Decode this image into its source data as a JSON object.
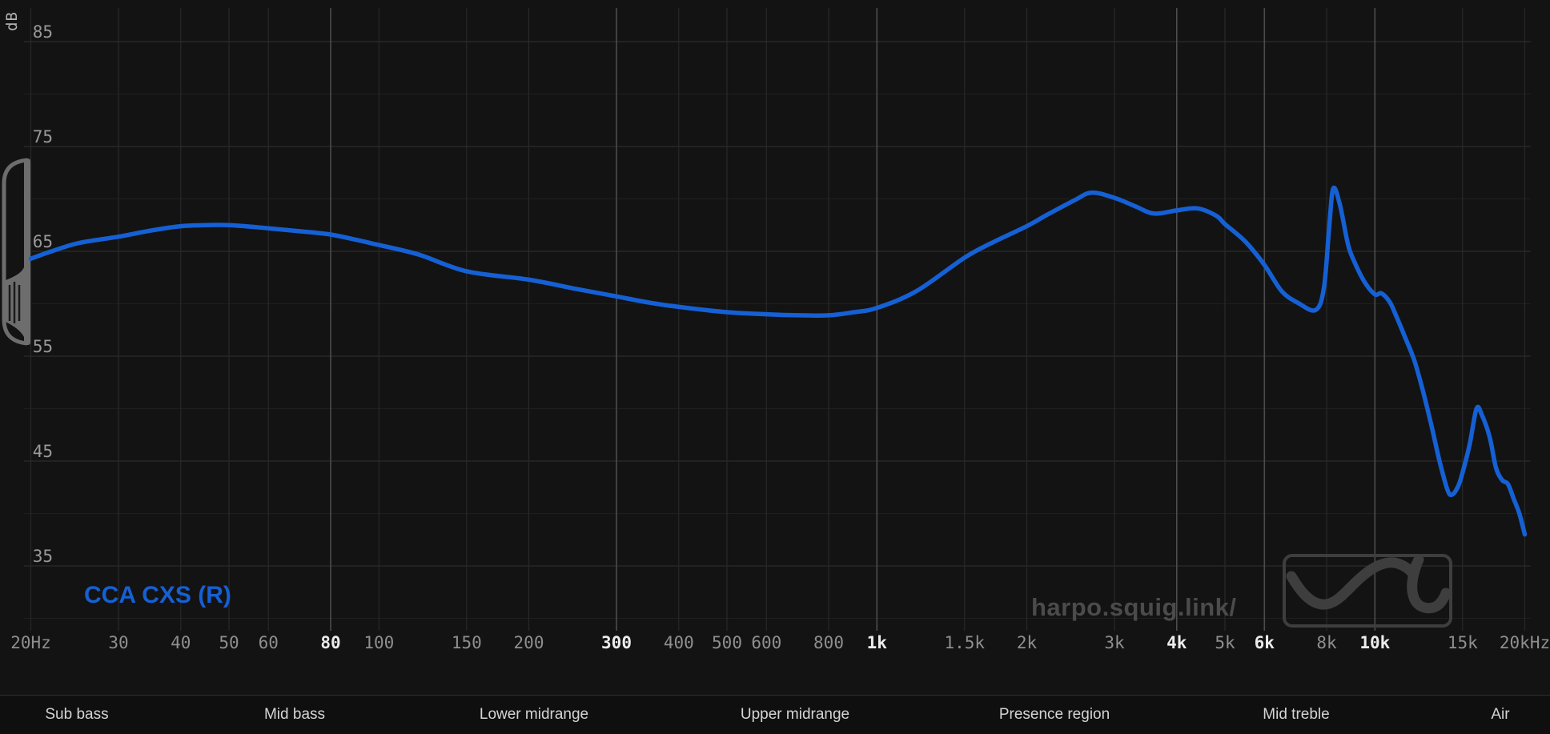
{
  "axes": {
    "y_unit": "dB"
  },
  "legend": {
    "label": "CCA CXS (R)",
    "color": "#1560d4"
  },
  "watermark": {
    "text": "harpo.squig.link/"
  },
  "regions": {
    "items": [
      {
        "label": "Sub bass"
      },
      {
        "label": "Mid bass"
      },
      {
        "label": "Lower midrange"
      },
      {
        "label": "Upper midrange"
      },
      {
        "label": "Presence region"
      },
      {
        "label": "Mid treble"
      },
      {
        "label": "Air"
      }
    ]
  },
  "chart_data": {
    "type": "line",
    "title": "",
    "x_axis": {
      "scale": "log",
      "unit": "Hz",
      "min": 20,
      "max": 20000,
      "ticks": [
        {
          "f": 20,
          "label": "20Hz",
          "major": false
        },
        {
          "f": 30,
          "label": "30",
          "major": false
        },
        {
          "f": 40,
          "label": "40",
          "major": false
        },
        {
          "f": 50,
          "label": "50",
          "major": false
        },
        {
          "f": 60,
          "label": "60",
          "major": false
        },
        {
          "f": 80,
          "label": "80",
          "major": true
        },
        {
          "f": 100,
          "label": "100",
          "major": false
        },
        {
          "f": 150,
          "label": "150",
          "major": false
        },
        {
          "f": 200,
          "label": "200",
          "major": false
        },
        {
          "f": 300,
          "label": "300",
          "major": true
        },
        {
          "f": 400,
          "label": "400",
          "major": false
        },
        {
          "f": 500,
          "label": "500",
          "major": false
        },
        {
          "f": 600,
          "label": "600",
          "major": false
        },
        {
          "f": 800,
          "label": "800",
          "major": false
        },
        {
          "f": 1000,
          "label": "1k",
          "major": true
        },
        {
          "f": 1500,
          "label": "1.5k",
          "major": false
        },
        {
          "f": 2000,
          "label": "2k",
          "major": false
        },
        {
          "f": 3000,
          "label": "3k",
          "major": false
        },
        {
          "f": 4000,
          "label": "4k",
          "major": true
        },
        {
          "f": 5000,
          "label": "5k",
          "major": false
        },
        {
          "f": 6000,
          "label": "6k",
          "major": true
        },
        {
          "f": 8000,
          "label": "8k",
          "major": false
        },
        {
          "f": 10000,
          "label": "10k",
          "major": true
        },
        {
          "f": 15000,
          "label": "15k",
          "major": false
        },
        {
          "f": 20000,
          "label": "20kHz",
          "major": false
        }
      ]
    },
    "y_axis": {
      "unit": "dB",
      "labeled_ticks": [
        85,
        75,
        65,
        55,
        45,
        35
      ],
      "minor_gridlines": [
        80,
        70,
        60,
        50,
        40,
        30
      ],
      "visible_range": [
        31,
        88
      ]
    },
    "legend_position": "bottom-left",
    "grid": true,
    "series": [
      {
        "name": "CCA CXS (R)",
        "channel": "R",
        "color": "#1560d4",
        "points": [
          [
            20,
            64.3
          ],
          [
            22,
            65.0
          ],
          [
            25,
            65.8
          ],
          [
            30,
            66.4
          ],
          [
            35,
            67.0
          ],
          [
            40,
            67.4
          ],
          [
            45,
            67.5
          ],
          [
            50,
            67.5
          ],
          [
            60,
            67.2
          ],
          [
            70,
            66.9
          ],
          [
            80,
            66.6
          ],
          [
            90,
            66.1
          ],
          [
            100,
            65.6
          ],
          [
            120,
            64.7
          ],
          [
            150,
            63.1
          ],
          [
            200,
            62.3
          ],
          [
            250,
            61.4
          ],
          [
            300,
            60.7
          ],
          [
            350,
            60.1
          ],
          [
            400,
            59.7
          ],
          [
            500,
            59.2
          ],
          [
            600,
            59.0
          ],
          [
            700,
            58.9
          ],
          [
            800,
            58.9
          ],
          [
            900,
            59.2
          ],
          [
            1000,
            59.6
          ],
          [
            1200,
            61.2
          ],
          [
            1500,
            64.4
          ],
          [
            1700,
            65.8
          ],
          [
            2000,
            67.4
          ],
          [
            2200,
            68.5
          ],
          [
            2500,
            69.9
          ],
          [
            2700,
            70.6
          ],
          [
            3000,
            70.1
          ],
          [
            3300,
            69.3
          ],
          [
            3600,
            68.6
          ],
          [
            4000,
            68.9
          ],
          [
            4400,
            69.1
          ],
          [
            4800,
            68.4
          ],
          [
            5000,
            67.6
          ],
          [
            5500,
            65.9
          ],
          [
            6000,
            63.7
          ],
          [
            6500,
            61.2
          ],
          [
            7000,
            60.1
          ],
          [
            7600,
            59.4
          ],
          [
            7900,
            61.5
          ],
          [
            8100,
            67.5
          ],
          [
            8250,
            71.0
          ],
          [
            8500,
            69.5
          ],
          [
            8800,
            66.0
          ],
          [
            9000,
            64.5
          ],
          [
            9500,
            62.2
          ],
          [
            10000,
            60.9
          ],
          [
            10300,
            61.0
          ],
          [
            10700,
            60.2
          ],
          [
            11000,
            59.0
          ],
          [
            11500,
            56.8
          ],
          [
            12000,
            54.6
          ],
          [
            12500,
            51.6
          ],
          [
            13000,
            48.3
          ],
          [
            13500,
            44.9
          ],
          [
            14000,
            42.2
          ],
          [
            14300,
            41.8
          ],
          [
            14700,
            42.6
          ],
          [
            15000,
            43.9
          ],
          [
            15500,
            46.6
          ],
          [
            16000,
            50.0
          ],
          [
            16400,
            49.4
          ],
          [
            17000,
            47.3
          ],
          [
            17500,
            44.4
          ],
          [
            18000,
            43.2
          ],
          [
            18500,
            42.8
          ],
          [
            19000,
            41.4
          ],
          [
            19500,
            40.0
          ],
          [
            20000,
            38.0
          ]
        ]
      }
    ]
  }
}
